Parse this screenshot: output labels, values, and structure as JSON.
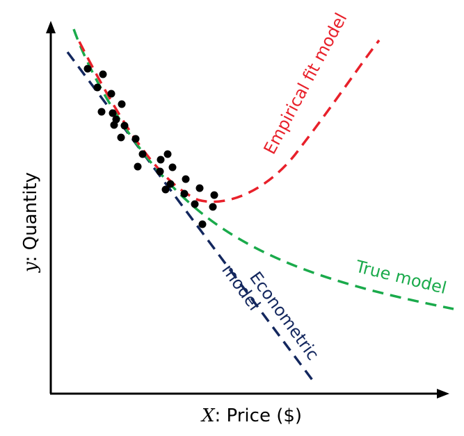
{
  "axes": {
    "x_var": "X",
    "x_rest": ": Price ($)",
    "y_var": "y",
    "y_rest": ": Quantity"
  },
  "colors": {
    "empirical": "#e8202a",
    "true_model": "#1aaa4b",
    "econometric": "#13275e",
    "points": "#000000"
  },
  "labels": {
    "empirical": "Empirical fit model",
    "true_model": "True model",
    "econometric_line1": "Econometric",
    "econometric_line2": "model"
  }
}
